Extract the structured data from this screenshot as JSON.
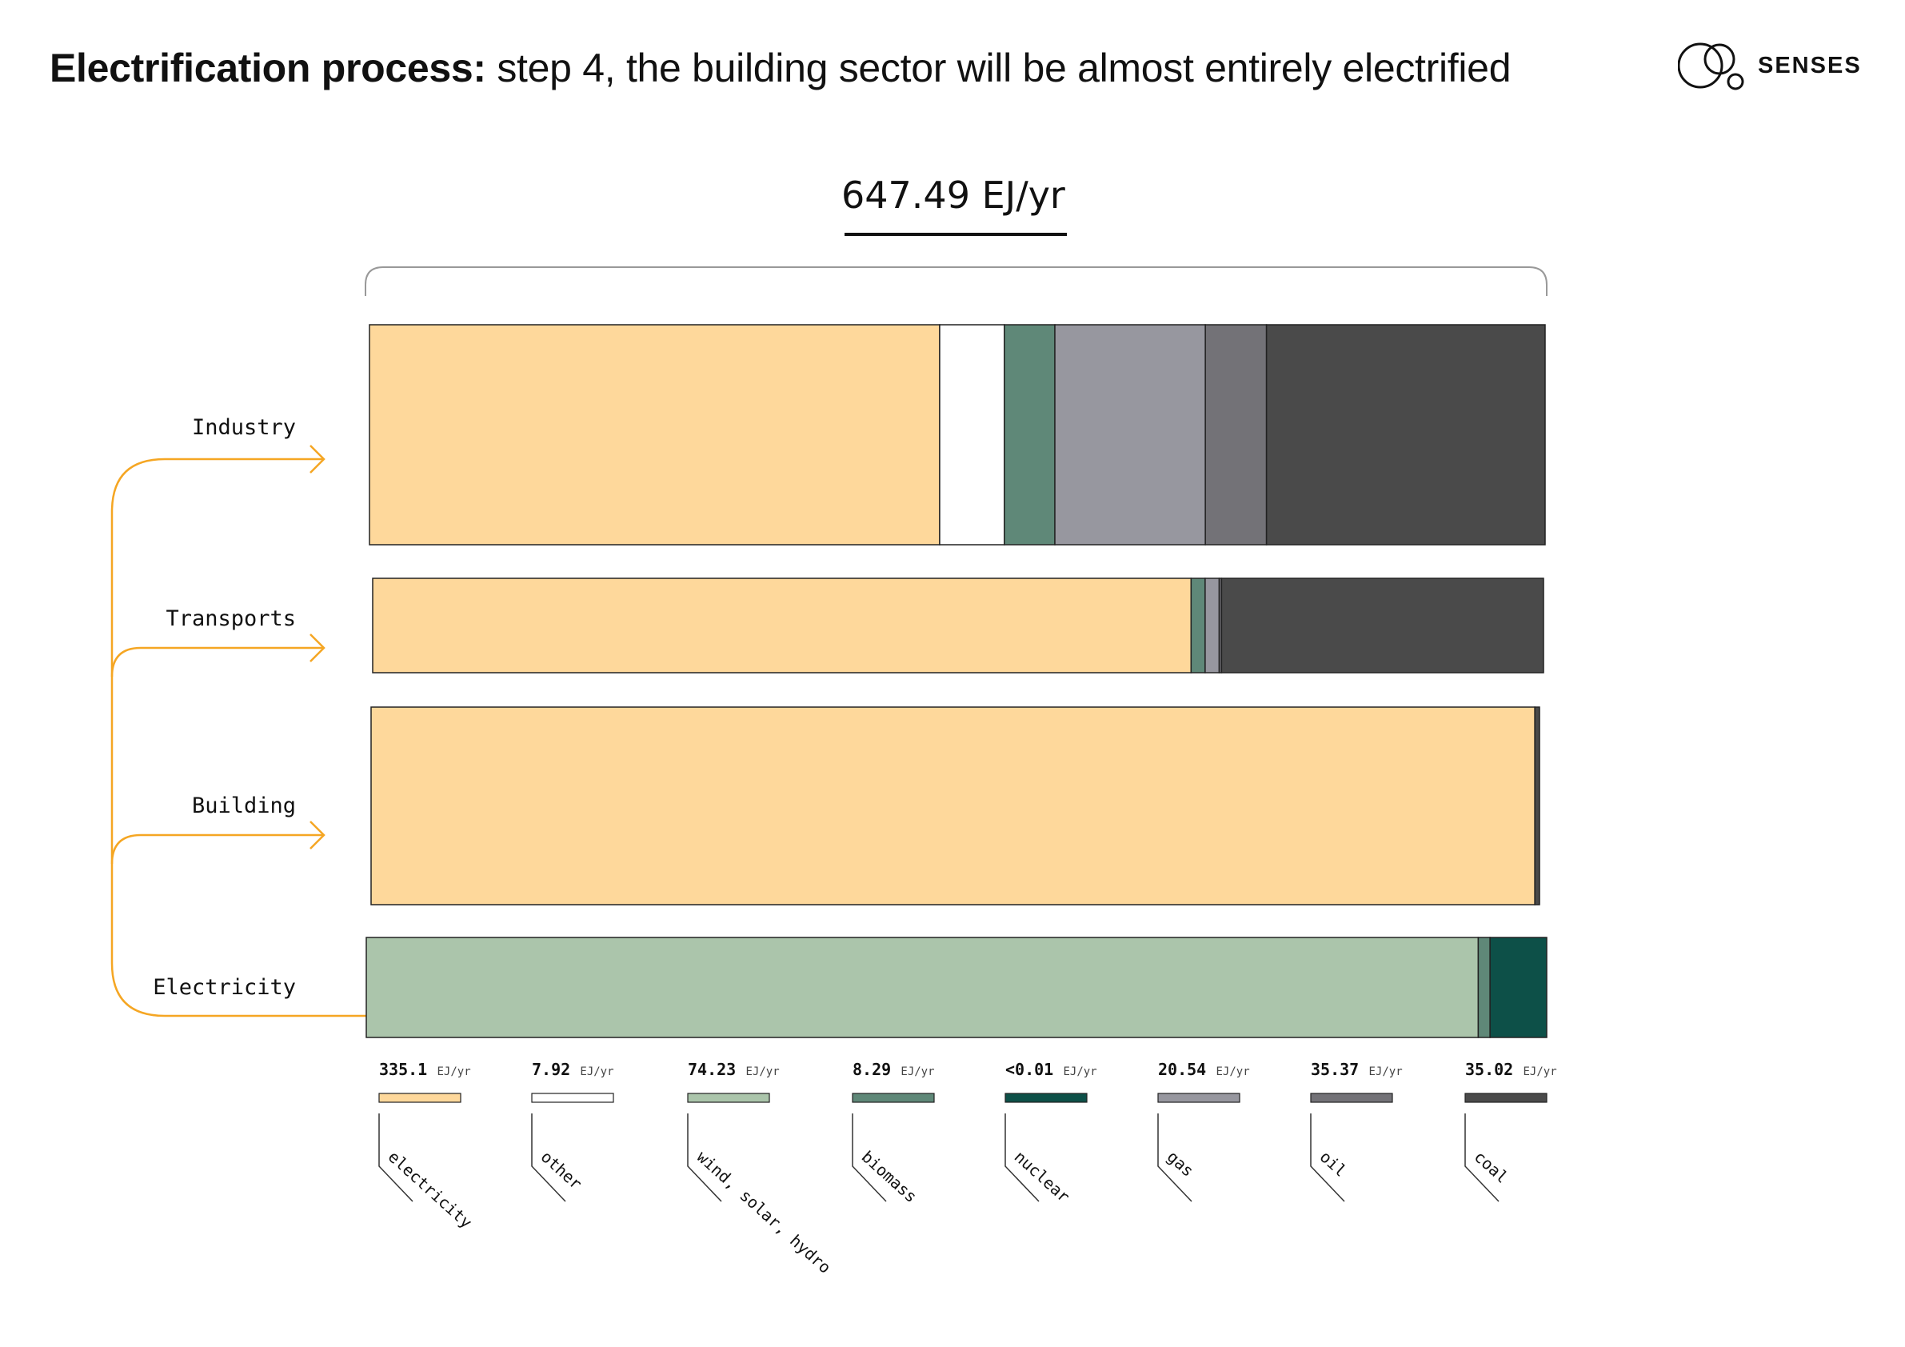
{
  "header": {
    "title_bold": "Electrification process:",
    "title_rest": " step 4, the building sector will be almost entirely electrified"
  },
  "logo": {
    "text": "SENSES",
    "icon": "overlapping-circles-logo"
  },
  "total_label": "647.49 EJ/yr",
  "colors": {
    "electricity": "#FED89B",
    "other": "#FFFFFF",
    "wind_solar_hydro": "#ABC5AB",
    "biomass": "#5F8878",
    "nuclear": "#0D5048",
    "gas": "#97979F",
    "oil": "#737277",
    "coal": "#4A4A4A",
    "arrow": "#F5A623",
    "outline": "#222222"
  },
  "chart_data": {
    "type": "bar",
    "orientation": "horizontal-stacked-100",
    "total": "647.49 EJ/yr",
    "unit": "EJ/yr",
    "carriers": [
      {
        "key": "electricity",
        "label": "electricity",
        "value_text": "335.1",
        "value": 335.1
      },
      {
        "key": "other",
        "label": "other",
        "value_text": "7.92",
        "value": 7.92
      },
      {
        "key": "wind_solar_hydro",
        "label": "wind, solar, hydro",
        "value_text": "74.23",
        "value": 74.23
      },
      {
        "key": "biomass",
        "label": "biomass",
        "value_text": "8.29",
        "value": 8.29
      },
      {
        "key": "nuclear",
        "label": "nuclear",
        "value_text": "<0.01",
        "value": 0.01
      },
      {
        "key": "gas",
        "label": "gas",
        "value_text": "20.54",
        "value": 20.54
      },
      {
        "key": "oil",
        "label": "oil",
        "value_text": "35.37",
        "value": 35.37
      },
      {
        "key": "coal",
        "label": "coal",
        "value_text": "35.02",
        "value": 35.02
      }
    ],
    "sectors": [
      {
        "name": "Industry",
        "shares": {
          "electricity": 48.5,
          "other": 5.5,
          "biomass": 4.3,
          "gas": 12.8,
          "oil": 5.2,
          "coal": 23.7
        }
      },
      {
        "name": "Transports",
        "shares": {
          "electricity": 69.9,
          "biomass": 1.2,
          "gas": 1.2,
          "coal": 27.5,
          "oil": 0.2
        }
      },
      {
        "name": "Building",
        "shares": {
          "electricity": 99.6,
          "coal": 0.4
        }
      },
      {
        "name": "Electricity",
        "shares": {
          "wind_solar_hydro": 94.2,
          "biomass": 1.0,
          "nuclear": 4.8
        }
      }
    ]
  }
}
